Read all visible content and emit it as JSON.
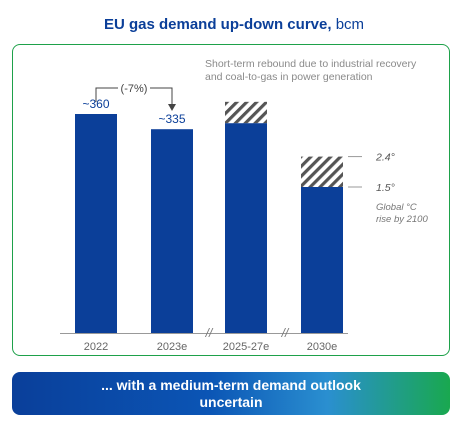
{
  "header": {
    "title": "EU gas demand up-down curve,",
    "unit": "bcm"
  },
  "annotations": {
    "rebound_note": [
      "Short-term rebound due to industrial recovery",
      "and coal-to-gas in power generation"
    ],
    "change_label": "-7%",
    "scenario_labels": [
      "2.4°",
      "1.5°"
    ],
    "scenario_caption": [
      "Global °C",
      "rise by 2100"
    ],
    "axis_break": "//"
  },
  "colors": {
    "bar": "#0b3f99",
    "hatch": "#555555",
    "panel_border": "#1ea14a",
    "title": "#0b3f99"
  },
  "chart_data": {
    "type": "bar",
    "categories": [
      "2022",
      "2023e",
      "2025-27e",
      "2030e"
    ],
    "series": [
      {
        "values": [
          360,
          335,
          345,
          240
        ]
      },
      {
        "values": [
          0,
          0,
          35,
          50
        ],
        "style": "hatched"
      }
    ],
    "data_labels": [
      "~360",
      "~335",
      "",
      ""
    ],
    "scenarios": [
      {
        "label": "2.4°",
        "value": 290
      },
      {
        "label": "1.5°",
        "value": 240
      }
    ],
    "xlabel": "",
    "ylabel": "",
    "ylim": [
      0,
      420
    ],
    "stacked": true,
    "grid": false,
    "legend": "none"
  },
  "footer": {
    "banner_text": "... with a medium-term demand outlook uncertain"
  }
}
